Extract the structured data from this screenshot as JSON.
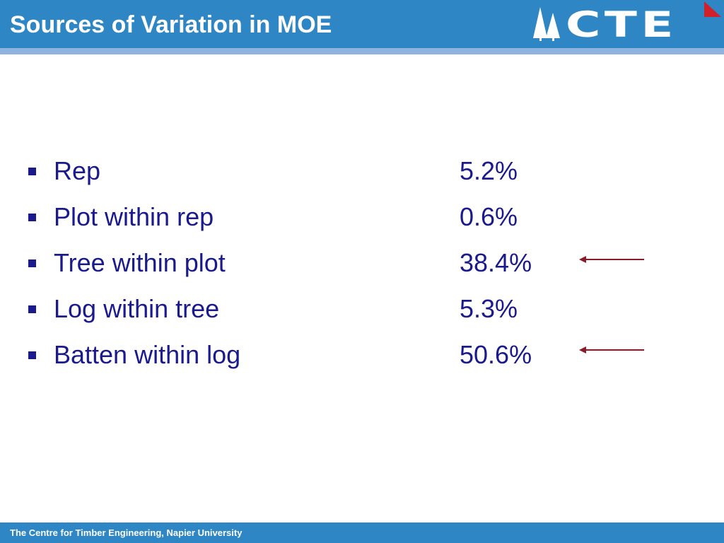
{
  "header": {
    "title": "Sources of Variation in MOE",
    "logo": "CTE"
  },
  "items": [
    {
      "label": "Rep",
      "value": "5.2%"
    },
    {
      "label": "Plot within rep",
      "value": "0.6%"
    },
    {
      "label": "Tree within plot",
      "value": "38.4%"
    },
    {
      "label": "Log within tree",
      "value": "5.3%"
    },
    {
      "label": "Batten within log",
      "value": "50.6%"
    }
  ],
  "footer": {
    "text": "The Centre for Timber Engineering, Napier University"
  }
}
